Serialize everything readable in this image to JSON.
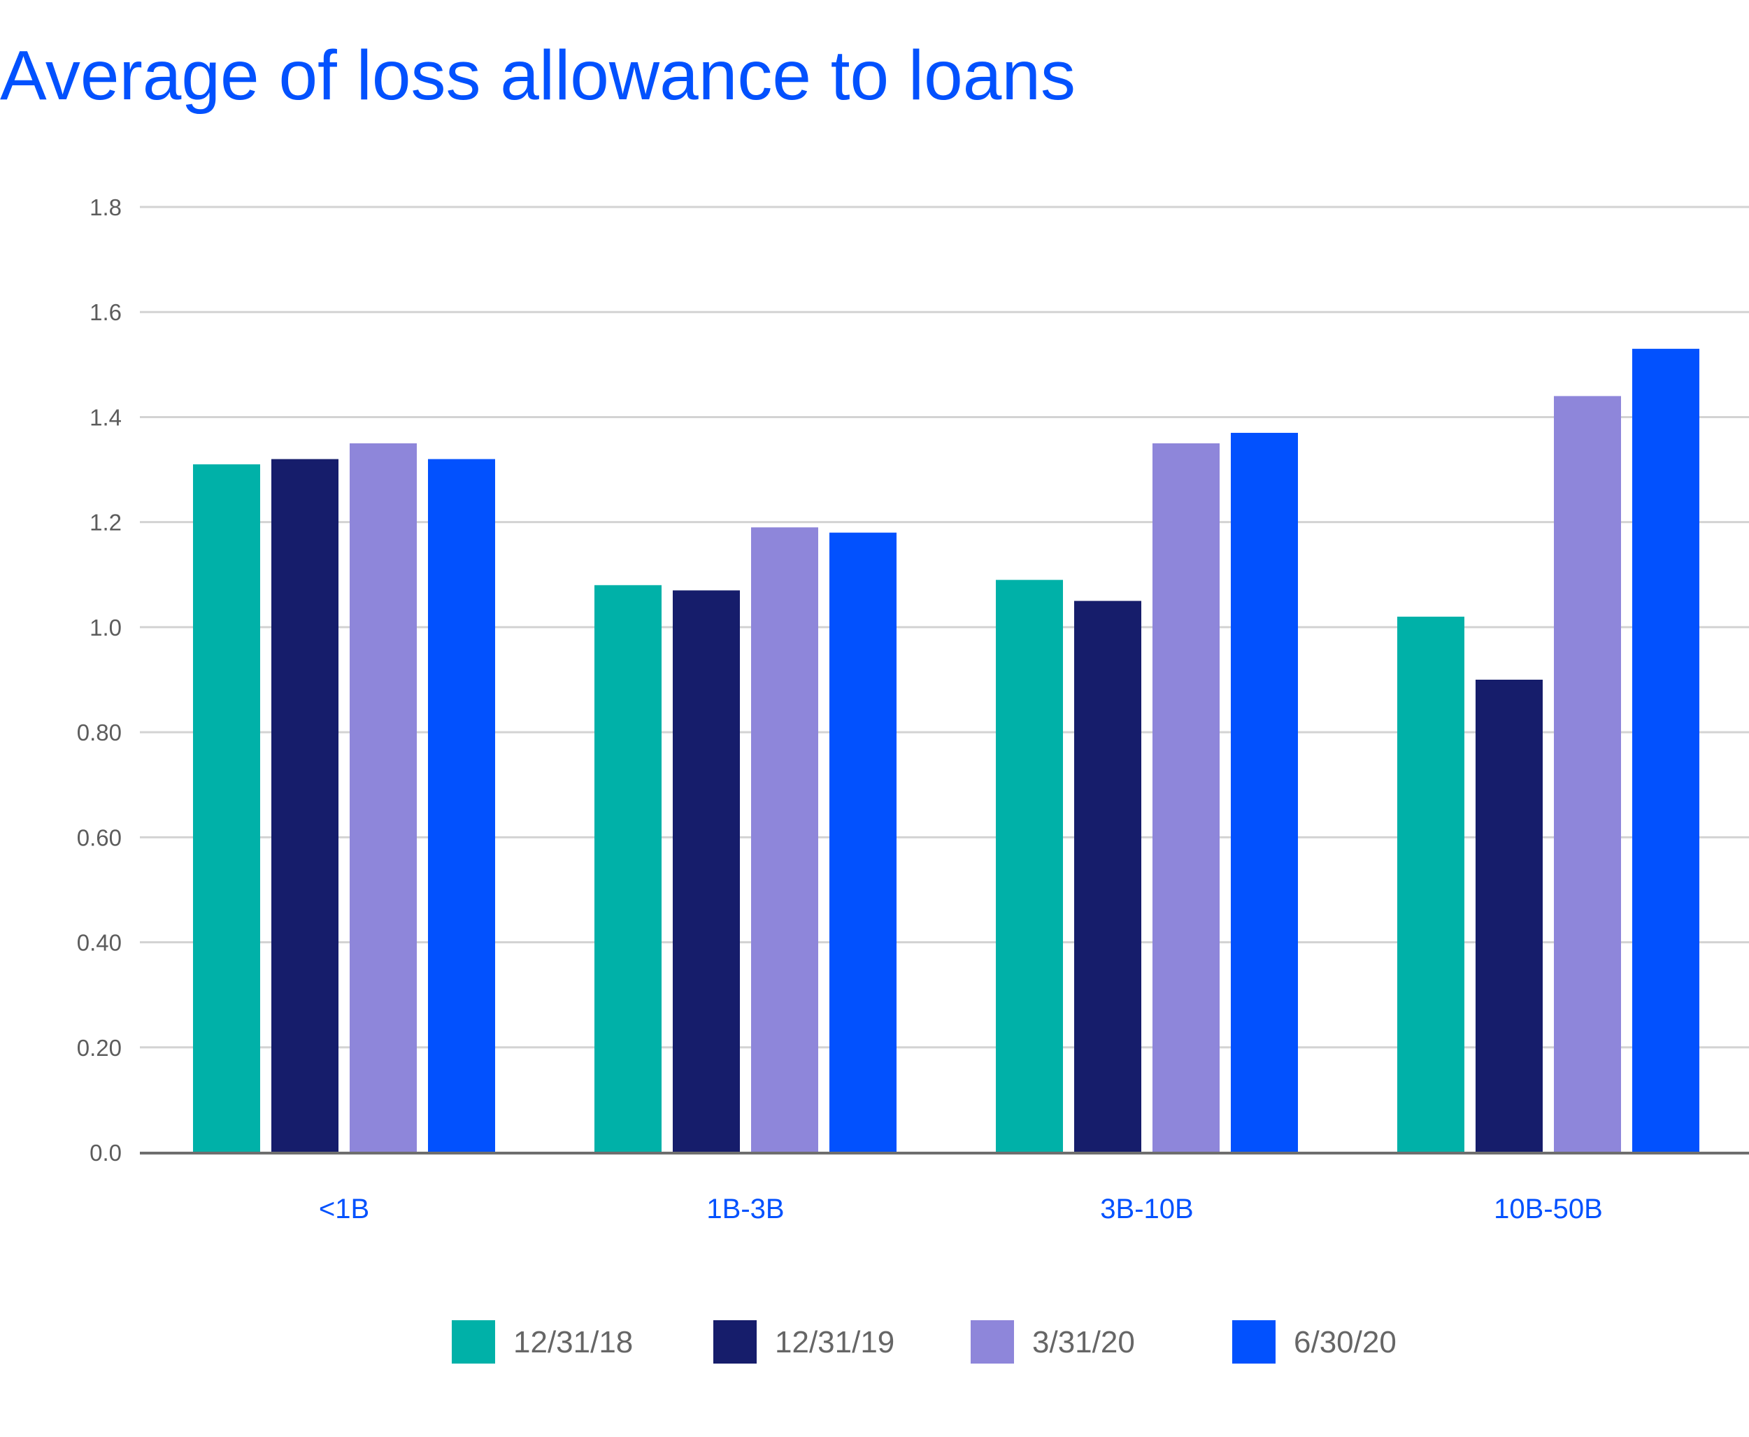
{
  "chart_data": {
    "type": "bar",
    "title": "Average of loss allowance to loans",
    "xlabel": "",
    "ylabel": "",
    "categories": [
      "<1B",
      "1B-3B",
      "3B-10B",
      "10B-50B"
    ],
    "series": [
      {
        "name": "12/31/18",
        "values": [
          1.31,
          1.08,
          1.09,
          1.02
        ]
      },
      {
        "name": "12/31/19",
        "values": [
          1.32,
          1.07,
          1.05,
          0.9
        ]
      },
      {
        "name": "3/31/20",
        "values": [
          1.35,
          1.19,
          1.35,
          1.44
        ]
      },
      {
        "name": "6/30/20",
        "values": [
          1.32,
          1.18,
          1.37,
          1.53
        ]
      }
    ],
    "ylim": [
      0,
      1.8
    ],
    "yticks": [
      {
        "value": 0,
        "label": "0.0"
      },
      {
        "value": 0.2,
        "label": "0.20"
      },
      {
        "value": 0.4,
        "label": "0.40"
      },
      {
        "value": 0.6,
        "label": "0.60"
      },
      {
        "value": 0.8,
        "label": "0.80"
      },
      {
        "value": 1.0,
        "label": "1.0"
      },
      {
        "value": 1.2,
        "label": "1.2"
      },
      {
        "value": 1.4,
        "label": "1.4"
      },
      {
        "value": 1.6,
        "label": "1.6"
      },
      {
        "value": 1.8,
        "label": "1.8"
      }
    ],
    "grid": true,
    "legend_position": "bottom",
    "colors": {
      "series": [
        "#00b1a8",
        "#161d6b",
        "#8e86da",
        "#0251fe"
      ],
      "title": "#0251fe",
      "category_labels": "#0251fe",
      "gridline": "#d3d3d3",
      "axis": "#6e6e6e"
    }
  }
}
